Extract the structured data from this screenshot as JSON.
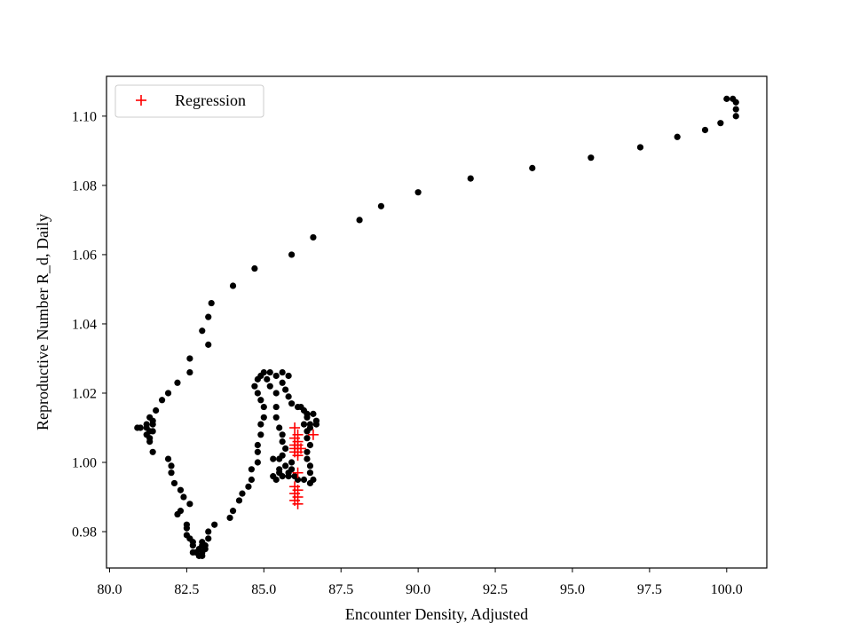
{
  "chart_data": {
    "type": "scatter",
    "xlabel": "Encounter Density, Adjusted",
    "ylabel": "Reproductive Number R_d, Daily",
    "xlim": [
      79.9,
      101.3
    ],
    "ylim": [
      0.9695,
      1.1115
    ],
    "xticks": [
      80.0,
      82.5,
      85.0,
      87.5,
      90.0,
      92.5,
      95.0,
      97.5,
      100.0
    ],
    "xtick_labels": [
      "80.0",
      "82.5",
      "85.0",
      "87.5",
      "90.0",
      "92.5",
      "95.0",
      "97.5",
      "100.0"
    ],
    "yticks": [
      0.98,
      1.0,
      1.02,
      1.04,
      1.06,
      1.08,
      1.1
    ],
    "ytick_labels": [
      "0.98",
      "1.00",
      "1.02",
      "1.04",
      "1.06",
      "1.08",
      "1.10"
    ],
    "legend": {
      "placement": "upper-left",
      "entries": [
        "Regression"
      ]
    },
    "grid": false,
    "series": [
      {
        "marker": "dot",
        "color": "#000000",
        "points": [
          [
            100.3,
            1.1
          ],
          [
            100.3,
            1.102
          ],
          [
            100.3,
            1.104
          ],
          [
            100.2,
            1.105
          ],
          [
            100.0,
            1.105
          ],
          [
            99.8,
            1.098
          ],
          [
            99.3,
            1.096
          ],
          [
            98.4,
            1.094
          ],
          [
            97.2,
            1.091
          ],
          [
            95.6,
            1.088
          ],
          [
            93.7,
            1.085
          ],
          [
            91.7,
            1.082
          ],
          [
            90.0,
            1.078
          ],
          [
            88.8,
            1.074
          ],
          [
            88.1,
            1.07
          ],
          [
            86.6,
            1.065
          ],
          [
            85.9,
            1.06
          ],
          [
            84.7,
            1.056
          ],
          [
            84.0,
            1.051
          ],
          [
            83.3,
            1.046
          ],
          [
            83.2,
            1.042
          ],
          [
            83.2,
            1.034
          ],
          [
            83.0,
            1.038
          ],
          [
            82.6,
            1.03
          ],
          [
            82.6,
            1.026
          ],
          [
            82.2,
            1.023
          ],
          [
            81.9,
            1.02
          ],
          [
            81.7,
            1.018
          ],
          [
            81.5,
            1.015
          ],
          [
            81.3,
            1.013
          ],
          [
            81.4,
            1.012
          ],
          [
            81.4,
            1.011
          ],
          [
            81.2,
            1.011
          ],
          [
            81.0,
            1.01
          ],
          [
            81.2,
            1.01
          ],
          [
            80.9,
            1.01
          ],
          [
            81.3,
            1.009
          ],
          [
            81.4,
            1.009
          ],
          [
            81.2,
            1.008
          ],
          [
            81.3,
            1.007
          ],
          [
            81.3,
            1.006
          ],
          [
            81.4,
            1.003
          ],
          [
            81.9,
            1.001
          ],
          [
            82.0,
            0.999
          ],
          [
            82.0,
            0.997
          ],
          [
            82.1,
            0.994
          ],
          [
            82.3,
            0.992
          ],
          [
            82.4,
            0.99
          ],
          [
            82.6,
            0.988
          ],
          [
            82.3,
            0.986
          ],
          [
            82.2,
            0.985
          ],
          [
            82.5,
            0.982
          ],
          [
            82.5,
            0.981
          ],
          [
            82.5,
            0.979
          ],
          [
            82.6,
            0.978
          ],
          [
            82.7,
            0.977
          ],
          [
            82.7,
            0.976
          ],
          [
            82.9,
            0.975
          ],
          [
            83.0,
            0.976
          ],
          [
            83.0,
            0.977
          ],
          [
            83.1,
            0.976
          ],
          [
            83.1,
            0.975
          ],
          [
            83.0,
            0.974
          ],
          [
            82.9,
            0.973
          ],
          [
            83.0,
            0.973
          ],
          [
            82.8,
            0.974
          ],
          [
            82.7,
            0.974
          ],
          [
            83.2,
            0.978
          ],
          [
            83.2,
            0.98
          ],
          [
            83.4,
            0.982
          ],
          [
            83.9,
            0.984
          ],
          [
            84.0,
            0.986
          ],
          [
            84.2,
            0.989
          ],
          [
            84.3,
            0.991
          ],
          [
            84.5,
            0.993
          ],
          [
            84.6,
            0.995
          ],
          [
            84.6,
            0.998
          ],
          [
            84.8,
            1.0
          ],
          [
            84.8,
            1.003
          ],
          [
            84.8,
            1.005
          ],
          [
            84.9,
            1.008
          ],
          [
            84.9,
            1.011
          ],
          [
            85.0,
            1.013
          ],
          [
            85.0,
            1.016
          ],
          [
            84.9,
            1.018
          ],
          [
            84.8,
            1.02
          ],
          [
            84.7,
            1.022
          ],
          [
            84.8,
            1.024
          ],
          [
            84.9,
            1.025
          ],
          [
            85.0,
            1.026
          ],
          [
            85.2,
            1.026
          ],
          [
            85.4,
            1.025
          ],
          [
            85.6,
            1.026
          ],
          [
            85.8,
            1.025
          ],
          [
            85.6,
            1.023
          ],
          [
            85.7,
            1.021
          ],
          [
            85.8,
            1.019
          ],
          [
            85.9,
            1.017
          ],
          [
            86.1,
            1.016
          ],
          [
            86.2,
            1.016
          ],
          [
            86.3,
            1.015
          ],
          [
            86.4,
            1.014
          ],
          [
            86.6,
            1.014
          ],
          [
            86.7,
            1.012
          ],
          [
            86.7,
            1.011
          ],
          [
            86.5,
            1.011
          ],
          [
            86.4,
            1.013
          ],
          [
            86.3,
            1.011
          ],
          [
            86.5,
            1.01
          ],
          [
            86.4,
            1.009
          ],
          [
            86.4,
            1.007
          ],
          [
            86.5,
            1.005
          ],
          [
            86.4,
            1.003
          ],
          [
            86.4,
            1.001
          ],
          [
            86.5,
            0.999
          ],
          [
            86.5,
            0.997
          ],
          [
            86.6,
            0.995
          ],
          [
            86.5,
            0.994
          ],
          [
            86.3,
            0.995
          ],
          [
            86.1,
            0.995
          ],
          [
            86.0,
            0.996
          ],
          [
            85.8,
            0.996
          ],
          [
            85.6,
            0.996
          ],
          [
            85.4,
            0.995
          ],
          [
            85.3,
            0.996
          ],
          [
            85.5,
            0.998
          ],
          [
            85.7,
            0.999
          ],
          [
            85.9,
            1.0
          ],
          [
            85.9,
            0.998
          ],
          [
            85.8,
            0.997
          ],
          [
            85.5,
            0.997
          ],
          [
            85.3,
            1.001
          ],
          [
            85.5,
            1.001
          ],
          [
            85.6,
            1.002
          ],
          [
            85.7,
            1.004
          ],
          [
            85.6,
            1.006
          ],
          [
            85.6,
            1.008
          ],
          [
            85.5,
            1.01
          ],
          [
            85.4,
            1.013
          ],
          [
            85.4,
            1.016
          ],
          [
            85.4,
            1.02
          ],
          [
            85.2,
            1.022
          ],
          [
            85.1,
            1.024
          ]
        ]
      },
      {
        "name": "Regression",
        "marker": "plus",
        "color": "#ff0000",
        "points": [
          [
            86.0,
            1.01
          ],
          [
            86.1,
            1.008
          ],
          [
            86.0,
            1.007
          ],
          [
            86.1,
            1.006
          ],
          [
            86.0,
            1.005
          ],
          [
            86.1,
            1.005
          ],
          [
            86.2,
            1.004
          ],
          [
            86.0,
            1.004
          ],
          [
            86.1,
            1.003
          ],
          [
            86.0,
            1.003
          ],
          [
            86.1,
            1.002
          ],
          [
            86.6,
            1.008
          ],
          [
            86.1,
            0.997
          ],
          [
            86.0,
            0.993
          ],
          [
            86.1,
            0.992
          ],
          [
            86.0,
            0.991
          ],
          [
            86.1,
            0.99
          ],
          [
            86.0,
            0.989
          ],
          [
            86.1,
            0.988
          ]
        ]
      }
    ]
  }
}
